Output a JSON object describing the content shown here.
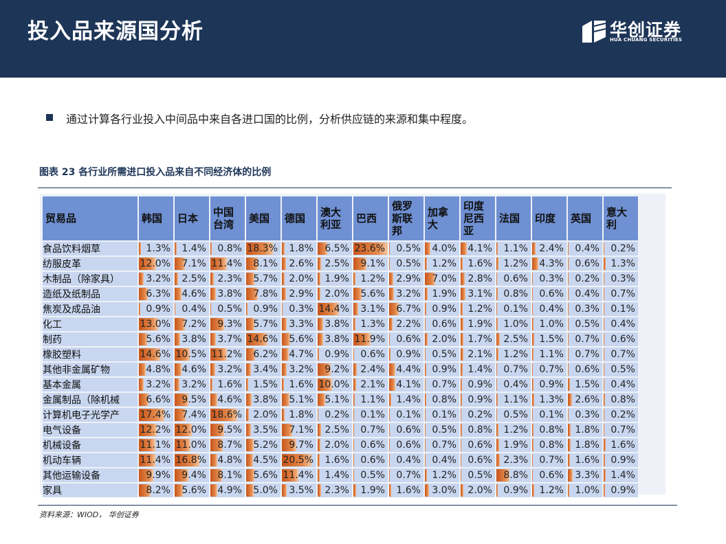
{
  "page": {
    "title": "投入品来源国分析",
    "logo": {
      "cn": "华创证券",
      "en": "HUA CHUANG SECURITIES"
    },
    "bullet": "通过计算各行业投入中间品中来自各进口国的比例，分析供应链的来源和集中程度。",
    "caption": "图表 23 各行业所需进口投入品来自不同经济体的比例",
    "source": "资料来源：WIOD， 华创证券"
  },
  "colors": {
    "header": "#1d3557",
    "table_header": "#6f90d2",
    "cell": "#c8d6ef",
    "bar": "#e48a4d"
  },
  "table": {
    "headers": [
      "贸易品",
      "韩国",
      "日本",
      "中国台湾",
      "美国",
      "德国",
      "澳大利亚",
      "巴西",
      "俄罗斯联邦",
      "加拿大",
      "印度尼西亚",
      "法国",
      "印度",
      "英国",
      "意大利"
    ],
    "rows": [
      {
        "name": "食品饮料烟草",
        "values": [
          "1.3%",
          "1.4%",
          "0.8%",
          "18.3%",
          "1.8%",
          "6.5%",
          "23.6%",
          "0.5%",
          "4.0%",
          "4.1%",
          "1.1%",
          "2.4%",
          "0.4%",
          "0.2%"
        ],
        "nums": [
          1.3,
          1.4,
          0.8,
          18.3,
          1.8,
          6.5,
          23.6,
          0.5,
          4.0,
          4.1,
          1.1,
          2.4,
          0.4,
          0.2
        ]
      },
      {
        "name": "纺服皮革",
        "values": [
          "12.0%",
          "7.1%",
          "11.4%",
          "8.1%",
          "2.6%",
          "2.5%",
          "9.1%",
          "0.5%",
          "1.2%",
          "1.6%",
          "1.2%",
          "4.3%",
          "0.6%",
          "1.3%"
        ],
        "nums": [
          12.0,
          7.1,
          11.4,
          8.1,
          2.6,
          2.5,
          9.1,
          0.5,
          1.2,
          1.6,
          1.2,
          4.3,
          0.6,
          1.3
        ]
      },
      {
        "name": "木制品（除家具）",
        "values": [
          "3.2%",
          "2.5%",
          "2.3%",
          "5.7%",
          "2.0%",
          "1.9%",
          "1.2%",
          "2.9%",
          "7.0%",
          "2.8%",
          "0.6%",
          "0.3%",
          "0.2%",
          "0.3%"
        ],
        "nums": [
          3.2,
          2.5,
          2.3,
          5.7,
          2.0,
          1.9,
          1.2,
          2.9,
          7.0,
          2.8,
          0.6,
          0.3,
          0.2,
          0.3
        ]
      },
      {
        "name": "造纸及纸制品",
        "values": [
          "6.3%",
          "4.6%",
          "3.8%",
          "7.8%",
          "2.9%",
          "2.0%",
          "5.6%",
          "3.2%",
          "1.9%",
          "3.1%",
          "0.8%",
          "0.6%",
          "0.4%",
          "0.7%"
        ],
        "nums": [
          6.3,
          4.6,
          3.8,
          7.8,
          2.9,
          2.0,
          5.6,
          3.2,
          1.9,
          3.1,
          0.8,
          0.6,
          0.4,
          0.7
        ]
      },
      {
        "name": "焦炭及成品油",
        "values": [
          "0.9%",
          "0.4%",
          "0.5%",
          "0.9%",
          "0.3%",
          "14.4%",
          "3.1%",
          "6.7%",
          "0.9%",
          "1.2%",
          "0.1%",
          "0.4%",
          "0.3%",
          "0.1%"
        ],
        "nums": [
          0.9,
          0.4,
          0.5,
          0.9,
          0.3,
          14.4,
          3.1,
          6.7,
          0.9,
          1.2,
          0.1,
          0.4,
          0.3,
          0.1
        ]
      },
      {
        "name": "化工",
        "values": [
          "13.0%",
          "7.2%",
          "9.3%",
          "5.7%",
          "3.3%",
          "3.8%",
          "1.3%",
          "2.2%",
          "0.6%",
          "1.9%",
          "1.0%",
          "1.0%",
          "0.5%",
          "0.4%"
        ],
        "nums": [
          13.0,
          7.2,
          9.3,
          5.7,
          3.3,
          3.8,
          1.3,
          2.2,
          0.6,
          1.9,
          1.0,
          1.0,
          0.5,
          0.4
        ]
      },
      {
        "name": "制药",
        "values": [
          "5.6%",
          "3.8%",
          "3.7%",
          "14.6%",
          "5.6%",
          "3.8%",
          "11.9%",
          "0.6%",
          "2.0%",
          "1.7%",
          "2.5%",
          "1.5%",
          "0.7%",
          "0.6%"
        ],
        "nums": [
          5.6,
          3.8,
          3.7,
          14.6,
          5.6,
          3.8,
          11.9,
          0.6,
          2.0,
          1.7,
          2.5,
          1.5,
          0.7,
          0.6
        ]
      },
      {
        "name": "橡胶塑料",
        "values": [
          "14.6%",
          "10.5%",
          "11.2%",
          "6.2%",
          "4.7%",
          "0.9%",
          "0.6%",
          "0.9%",
          "0.5%",
          "2.1%",
          "1.2%",
          "1.1%",
          "0.7%",
          "0.7%"
        ],
        "nums": [
          14.6,
          10.5,
          11.2,
          6.2,
          4.7,
          0.9,
          0.6,
          0.9,
          0.5,
          2.1,
          1.2,
          1.1,
          0.7,
          0.7
        ]
      },
      {
        "name": "其他非金属矿物",
        "values": [
          "4.8%",
          "4.6%",
          "3.2%",
          "3.4%",
          "3.2%",
          "9.2%",
          "2.4%",
          "4.4%",
          "0.9%",
          "1.4%",
          "0.7%",
          "0.7%",
          "0.6%",
          "0.5%"
        ],
        "nums": [
          4.8,
          4.6,
          3.2,
          3.4,
          3.2,
          9.2,
          2.4,
          4.4,
          0.9,
          1.4,
          0.7,
          0.7,
          0.6,
          0.5
        ]
      },
      {
        "name": "基本金属",
        "values": [
          "3.2%",
          "3.2%",
          "1.6%",
          "1.5%",
          "1.6%",
          "10.0%",
          "2.1%",
          "4.1%",
          "0.7%",
          "0.9%",
          "0.4%",
          "0.9%",
          "1.5%",
          "0.4%"
        ],
        "nums": [
          3.2,
          3.2,
          1.6,
          1.5,
          1.6,
          10.0,
          2.1,
          4.1,
          0.7,
          0.9,
          0.4,
          0.9,
          1.5,
          0.4
        ]
      },
      {
        "name": "金属制品（除机械",
        "values": [
          "6.6%",
          "9.5%",
          "4.6%",
          "3.8%",
          "5.1%",
          "5.1%",
          "1.1%",
          "1.4%",
          "0.8%",
          "0.9%",
          "1.1%",
          "1.3%",
          "2.6%",
          "0.8%"
        ],
        "nums": [
          6.6,
          9.5,
          4.6,
          3.8,
          5.1,
          5.1,
          1.1,
          1.4,
          0.8,
          0.9,
          1.1,
          1.3,
          2.6,
          0.8
        ]
      },
      {
        "name": "计算机电子光学产",
        "values": [
          "17.4%",
          "7.4%",
          "18.6%",
          "2.0%",
          "1.8%",
          "0.2%",
          "0.1%",
          "0.1%",
          "0.1%",
          "0.2%",
          "0.5%",
          "0.1%",
          "0.3%",
          "0.2%"
        ],
        "nums": [
          17.4,
          7.4,
          18.6,
          2.0,
          1.8,
          0.2,
          0.1,
          0.1,
          0.1,
          0.2,
          0.5,
          0.1,
          0.3,
          0.2
        ]
      },
      {
        "name": "电气设备",
        "values": [
          "12.2%",
          "12.0%",
          "9.5%",
          "3.5%",
          "7.1%",
          "2.5%",
          "0.7%",
          "0.6%",
          "0.5%",
          "0.8%",
          "1.2%",
          "0.8%",
          "1.8%",
          "0.7%"
        ],
        "nums": [
          12.2,
          12.0,
          9.5,
          3.5,
          7.1,
          2.5,
          0.7,
          0.6,
          0.5,
          0.8,
          1.2,
          0.8,
          1.8,
          0.7
        ]
      },
      {
        "name": "机械设备",
        "values": [
          "11.1%",
          "11.0%",
          "8.7%",
          "5.2%",
          "9.7%",
          "2.0%",
          "0.6%",
          "0.6%",
          "0.7%",
          "0.6%",
          "1.9%",
          "0.8%",
          "1.8%",
          "1.6%"
        ],
        "nums": [
          11.1,
          11.0,
          8.7,
          5.2,
          9.7,
          2.0,
          0.6,
          0.6,
          0.7,
          0.6,
          1.9,
          0.8,
          1.8,
          1.6
        ]
      },
      {
        "name": "机动车辆",
        "values": [
          "11.4%",
          "16.8%",
          "4.8%",
          "4.5%",
          "20.5%",
          "1.6%",
          "0.6%",
          "0.4%",
          "0.4%",
          "0.6%",
          "2.3%",
          "0.7%",
          "1.6%",
          "0.9%"
        ],
        "nums": [
          11.4,
          16.8,
          4.8,
          4.5,
          20.5,
          1.6,
          0.6,
          0.4,
          0.4,
          0.6,
          2.3,
          0.7,
          1.6,
          0.9
        ]
      },
      {
        "name": "其他运输设备",
        "values": [
          "9.9%",
          "9.4%",
          "8.1%",
          "5.6%",
          "11.4%",
          "1.4%",
          "0.5%",
          "0.7%",
          "1.2%",
          "0.5%",
          "8.8%",
          "0.6%",
          "3.3%",
          "1.4%"
        ],
        "nums": [
          9.9,
          9.4,
          8.1,
          5.6,
          11.4,
          1.4,
          0.5,
          0.7,
          1.2,
          0.5,
          8.8,
          0.6,
          3.3,
          1.4
        ]
      },
      {
        "name": "家具",
        "values": [
          "8.2%",
          "5.6%",
          "4.9%",
          "5.0%",
          "3.5%",
          "2.3%",
          "1.9%",
          "1.6%",
          "3.0%",
          "2.0%",
          "0.9%",
          "1.2%",
          "1.0%",
          "0.9%"
        ],
        "nums": [
          8.2,
          5.6,
          4.9,
          5.0,
          3.5,
          2.3,
          1.9,
          1.6,
          3.0,
          2.0,
          0.9,
          1.2,
          1.0,
          0.9
        ]
      }
    ]
  }
}
